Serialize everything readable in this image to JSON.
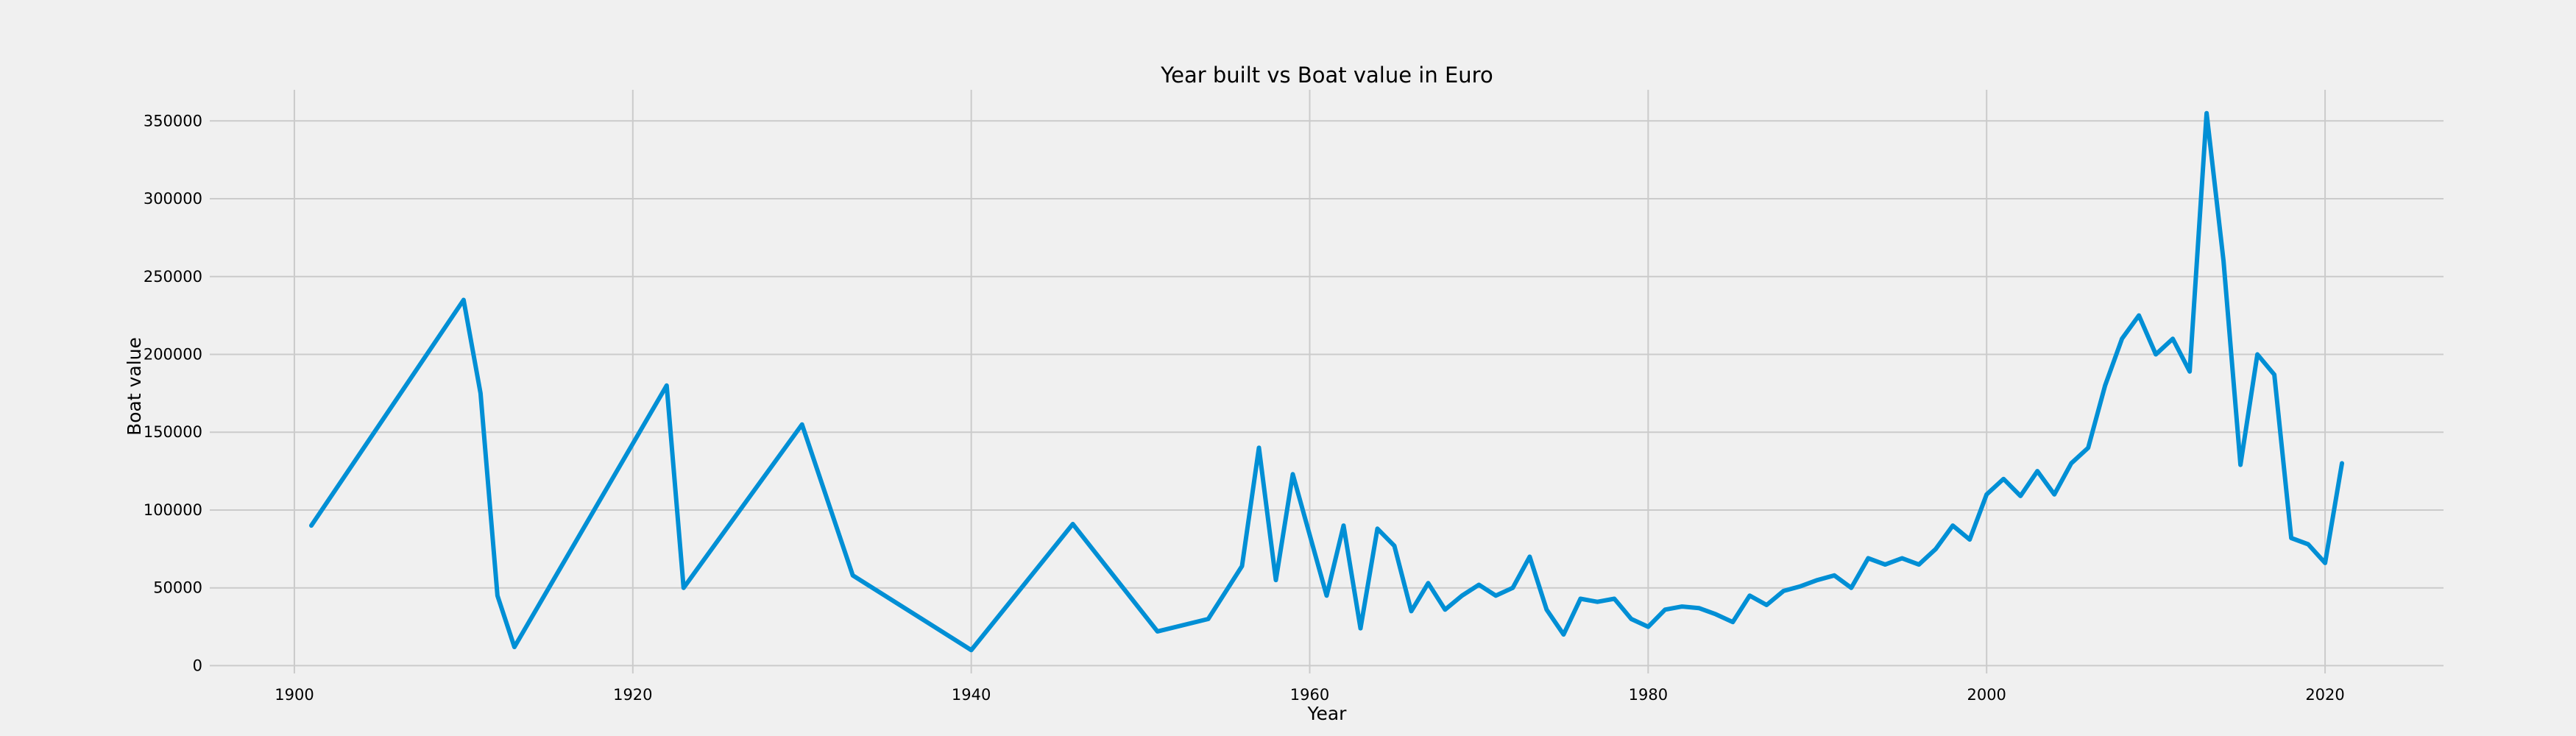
{
  "chart_data": {
    "type": "line",
    "title": "Year built vs Boat value in Euro",
    "xlabel": "Year",
    "ylabel": "Boat value",
    "xlim": [
      1895,
      2027
    ],
    "ylim": [
      -5000,
      370000
    ],
    "x_ticks": [
      1900,
      1920,
      1940,
      1960,
      1980,
      2000,
      2020
    ],
    "y_ticks": [
      0,
      50000,
      100000,
      150000,
      200000,
      250000,
      300000,
      350000
    ],
    "x_tick_labels": [
      "1900",
      "1920",
      "1940",
      "1960",
      "1980",
      "2000",
      "2020"
    ],
    "y_tick_labels": [
      "0",
      "50000",
      "100000",
      "150000",
      "200000",
      "250000",
      "300000",
      "350000"
    ],
    "grid": true,
    "color": "#008fd5",
    "series": [
      {
        "x": [
          1901,
          1910,
          1911,
          1912,
          1913,
          1922,
          1923,
          1930,
          1933,
          1940,
          1946,
          1951,
          1954,
          1956,
          1957,
          1958,
          1959,
          1961,
          1962,
          1963,
          1964,
          1965,
          1966,
          1967,
          1968,
          1969,
          1970,
          1971,
          1972,
          1973,
          1974,
          1975,
          1976,
          1977,
          1978,
          1979,
          1980,
          1981,
          1982,
          1983,
          1984,
          1985,
          1986,
          1987,
          1988,
          1989,
          1990,
          1991,
          1992,
          1993,
          1994,
          1995,
          1996,
          1997,
          1998,
          1999,
          2000,
          2001,
          2002,
          2003,
          2004,
          2005,
          2006,
          2007,
          2008,
          2009,
          2010,
          2011,
          2012,
          2013,
          2014,
          2015,
          2016,
          2017,
          2018,
          2019,
          2020,
          2021
        ],
        "values": [
          90000,
          235000,
          175000,
          45000,
          12000,
          180000,
          50000,
          155000,
          58000,
          10000,
          91000,
          22000,
          30000,
          64000,
          140000,
          55000,
          123000,
          45000,
          90000,
          24000,
          88000,
          77000,
          35000,
          53000,
          36000,
          45000,
          52000,
          45000,
          50000,
          70000,
          36000,
          20000,
          43000,
          41000,
          43000,
          30000,
          25000,
          36000,
          38000,
          37000,
          33000,
          28000,
          45000,
          39000,
          48000,
          51000,
          55000,
          58000,
          50000,
          69000,
          65000,
          69000,
          65000,
          75000,
          90000,
          81000,
          110000,
          120000,
          109000,
          125000,
          110000,
          130000,
          140000,
          180000,
          210000,
          225000,
          200000,
          210000,
          189000,
          355000,
          260000,
          129000,
          200000,
          187000,
          82000,
          78000,
          66000,
          130000
        ]
      }
    ]
  }
}
